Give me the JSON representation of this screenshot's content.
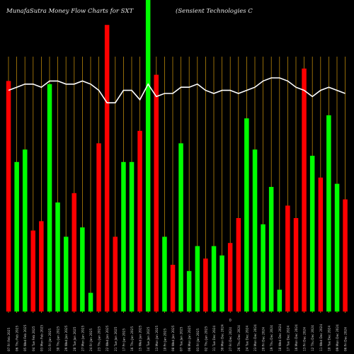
{
  "header": {
    "left_title": "MunafaSutra  Money Flow  Charts for SXT",
    "right_title": "(Sensient Technologies C"
  },
  "chart_data": {
    "type": "bar",
    "title": "MunafaSutra Money Flow Charts for SXT (Sensient Technologies C",
    "grid": true,
    "grid_color": "#b8860b",
    "background": "#000000",
    "colors": {
      "up": "#00ff00",
      "down": "#ff0000",
      "line": "#ffffff",
      "text": "#cfcfcf"
    },
    "bar_value_range": [
      0,
      100
    ],
    "line_value_range": [
      0,
      100
    ],
    "footer_mark": "0",
    "categories": [
      "Fri 07 Feb 2025",
      "Thu 06 Feb 2025",
      "Wed 05 Feb 2025",
      "Tue 04 Feb 2025",
      "Mon 03 Feb 2025",
      "Fri 31 Jan 2025",
      "Thu 30 Jan 2025",
      "Wed 29 Jan 2025",
      "Tue 28 Jan 2025",
      "Mon 27 Jan 2025",
      "Fri 24 Jan 2025",
      "Thu 23 Jan 2025",
      "Wed 22 Jan 2025",
      "Tue 21 Jan 2025",
      "Fri 17 Jan 2025",
      "Thu 16 Jan 2025",
      "Wed 15 Jan 2025",
      "Tue 14 Jan 2025",
      "Mon 13 Jan 2025",
      "Fri 10 Jan 2025",
      "Wed 08 Jan 2025",
      "Tue 07 Jan 2025",
      "Mon 06 Jan 2025",
      "Fri 03 Jan 2025",
      "Thu 02 Jan 2025",
      "Tue 31 Dec 2024",
      "Mon 30 Dec 2024",
      "Fri 27 Dec 2024",
      "Thu 26 Dec 2024",
      "Tue 24 Dec 2024",
      "Mon 23 Dec 2024",
      "Fri 20 Dec 2024",
      "Thu 19 Dec 2024",
      "Wed 18 Dec 2024",
      "Tue 17 Dec 2024",
      "Mon 16 Dec 2024",
      "Fri 13 Dec 2024",
      "Thu 12 Dec 2024",
      "Wed 11 Dec 2024",
      "Tue 10 Dec 2024",
      "Mon 09 Dec 2024",
      "Fri 06 Dec 2024"
    ],
    "x_tick_labels": [
      "07 Fri Feb 2025",
      "06 Thu Feb 2025",
      "05 Wed Feb 2025",
      "04 Tue Feb 2025",
      "03 Mon Feb 2025",
      "31 Fri Jan 2025",
      "30 Thu Jan 2025",
      "29 Wed Jan 2025",
      "28 Tue Jan 2025",
      "27 Mon Jan 2025",
      "24 Fri Jan 2025",
      "23 Thu Jan 2025",
      "22 Wed Jan 2025",
      "21 Tue Jan 2025",
      "17 Fri Jan 2025",
      "16 Thu Jan 2025",
      "15 Wed Jan 2025",
      "14 Tue Jan 2025",
      "13 Mon Jan 2025",
      "10 Fri Jan 2025",
      "08 Wed Jan 2025",
      "07 Tue Jan 2025",
      "06 Mon Jan 2025",
      "03 Fri Jan 2025",
      "02 Thu Jan 2025",
      "31 Tue Dec 2024",
      "30 Mon Dec 2024",
      "27 Fri Dec 2024",
      "26 Thu Dec 2024",
      "24 Tue Dec 2024",
      "23 Mon Dec 2024",
      "20 Fri Dec 2024",
      "19 Thu Dec 2024",
      "18 Wed Dec 2024",
      "17 Tue Dec 2024",
      "16 Mon Dec 2024",
      "13 Fri Dec 2024",
      "12 Thu Dec 2024",
      "11 Wed Dec 2024",
      "10 Tue Dec 2024",
      "09 Mon Dec 2024",
      "06 Fri Dec 2024"
    ],
    "bar_values": [
      74,
      48,
      52,
      26,
      29,
      73,
      35,
      24,
      38,
      27,
      6,
      54,
      92,
      24,
      48,
      48,
      58,
      100,
      76,
      24,
      15,
      54,
      13,
      21,
      17,
      21,
      18,
      22,
      30,
      62,
      52,
      28,
      40,
      7,
      34,
      30,
      78,
      50,
      43,
      63,
      41,
      36
    ],
    "bar_colors": [
      "red",
      "green",
      "green",
      "red",
      "red",
      "green",
      "green",
      "green",
      "red",
      "green",
      "green",
      "red",
      "red",
      "red",
      "green",
      "green",
      "red",
      "green",
      "red",
      "green",
      "red",
      "green",
      "green",
      "green",
      "red",
      "green",
      "green",
      "red",
      "red",
      "green",
      "green",
      "green",
      "green",
      "green",
      "red",
      "red",
      "red",
      "green",
      "red",
      "green",
      "green",
      "red"
    ],
    "line_values": [
      71,
      72,
      73,
      73,
      72,
      74,
      74,
      73,
      73,
      74,
      73,
      71,
      67,
      67,
      71,
      71,
      68,
      73,
      69,
      70,
      70,
      72,
      72,
      73,
      71,
      70,
      71,
      71,
      70,
      71,
      72,
      74,
      75,
      75,
      74,
      72,
      71,
      69,
      71,
      72,
      71,
      70
    ]
  }
}
